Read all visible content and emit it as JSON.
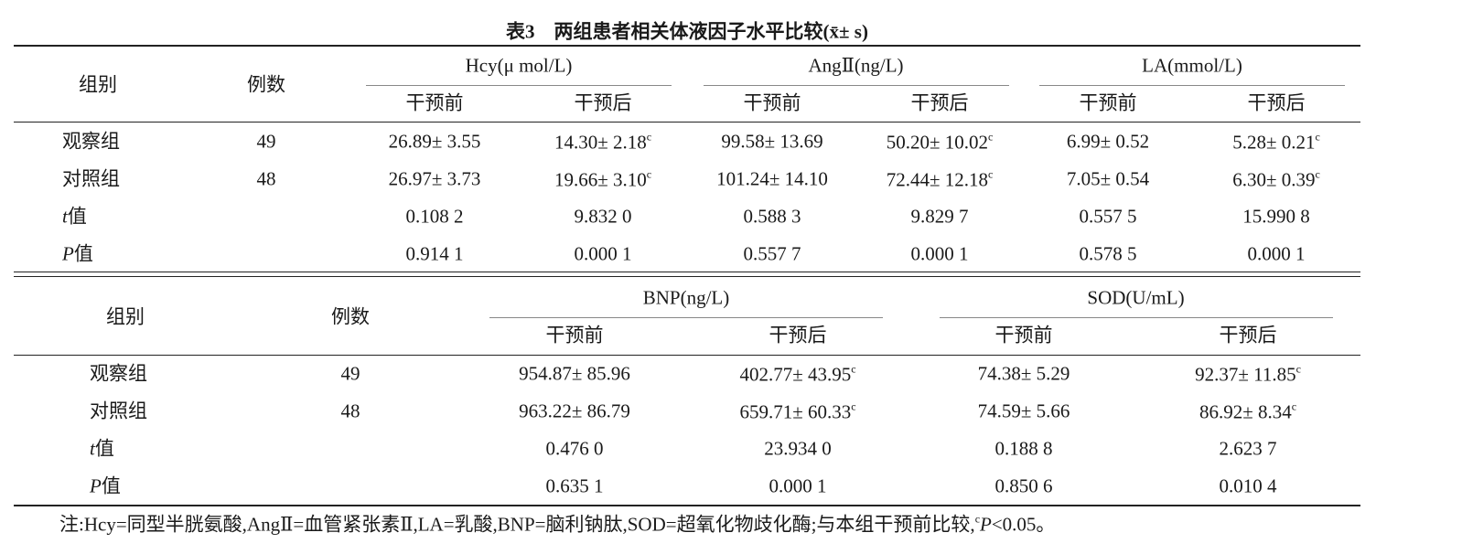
{
  "title": "表3　两组患者相关体液因子水平比较(x̄± s)",
  "table1": {
    "group_header": "组别",
    "count_header": "例数",
    "column_groups": [
      {
        "label": "Hcy(μ mol/L)",
        "subheaders": [
          "干预前",
          "干预后"
        ]
      },
      {
        "label": "AngⅡ(ng/L)",
        "subheaders": [
          "干预前",
          "干预后"
        ]
      },
      {
        "label": "LA(mmol/L)",
        "subheaders": [
          "干预前",
          "干预后"
        ]
      }
    ],
    "rows": [
      {
        "label": {
          "text": "观察组"
        },
        "count": "49",
        "cells": [
          {
            "text": "26.89± 3.55"
          },
          {
            "text": "14.30± 2.18",
            "sup": "c"
          },
          {
            "text": "99.58± 13.69"
          },
          {
            "text": "50.20± 10.02",
            "sup": "c"
          },
          {
            "text": "6.99± 0.52"
          },
          {
            "text": "5.28± 0.21",
            "sup": "c"
          }
        ]
      },
      {
        "label": {
          "text": "对照组"
        },
        "count": "48",
        "cells": [
          {
            "text": "26.97± 3.73"
          },
          {
            "text": "19.66± 3.10",
            "sup": "c"
          },
          {
            "text": "101.24± 14.10"
          },
          {
            "text": "72.44± 12.18",
            "sup": "c"
          },
          {
            "text": "7.05± 0.54"
          },
          {
            "text": "6.30± 0.39",
            "sup": "c"
          }
        ]
      },
      {
        "label": {
          "italic": "t",
          "text": "值"
        },
        "cells": [
          {
            "text": "0.108 2"
          },
          {
            "text": "9.832 0"
          },
          {
            "text": "0.588 3"
          },
          {
            "text": "9.829 7"
          },
          {
            "text": "0.557 5"
          },
          {
            "text": "15.990 8"
          }
        ]
      },
      {
        "label": {
          "italic": "P",
          "text": "值"
        },
        "cells": [
          {
            "text": "0.914 1"
          },
          {
            "text": "0.000 1"
          },
          {
            "text": "0.557 7"
          },
          {
            "text": "0.000 1"
          },
          {
            "text": "0.578 5"
          },
          {
            "text": "0.000 1"
          }
        ]
      }
    ]
  },
  "table2": {
    "group_header": "组别",
    "count_header": "例数",
    "column_groups": [
      {
        "label": "BNP(ng/L)",
        "subheaders": [
          "干预前",
          "干预后"
        ]
      },
      {
        "label": "SOD(U/mL)",
        "subheaders": [
          "干预前",
          "干预后"
        ]
      }
    ],
    "rows": [
      {
        "label": {
          "text": "观察组"
        },
        "count": "49",
        "cells": [
          {
            "text": "954.87± 85.96"
          },
          {
            "text": "402.77± 43.95",
            "sup": "c"
          },
          {
            "text": "74.38± 5.29"
          },
          {
            "text": "92.37± 11.85",
            "sup": "c"
          }
        ]
      },
      {
        "label": {
          "text": "对照组"
        },
        "count": "48",
        "cells": [
          {
            "text": "963.22± 86.79"
          },
          {
            "text": "659.71± 60.33",
            "sup": "c"
          },
          {
            "text": "74.59± 5.66"
          },
          {
            "text": "86.92± 8.34",
            "sup": "c"
          }
        ]
      },
      {
        "label": {
          "italic": "t",
          "text": "值"
        },
        "cells": [
          {
            "text": "0.476 0"
          },
          {
            "text": "23.934 0"
          },
          {
            "text": "0.188 8"
          },
          {
            "text": "2.623 7"
          }
        ]
      },
      {
        "label": {
          "italic": "P",
          "text": "值"
        },
        "cells": [
          {
            "text": "0.635 1"
          },
          {
            "text": "0.000 1"
          },
          {
            "text": "0.850 6"
          },
          {
            "text": "0.010 4"
          }
        ]
      }
    ]
  },
  "note": {
    "text": "注:Hcy=同型半胱氨酸,AngⅡ=血管紧张素Ⅱ,LA=乳酸,BNP=脑利钠肽,SOD=超氧化物歧化酶;与本组干预前比较,",
    "sup": "c",
    "italic": "P",
    "tail": "<0.05。"
  }
}
